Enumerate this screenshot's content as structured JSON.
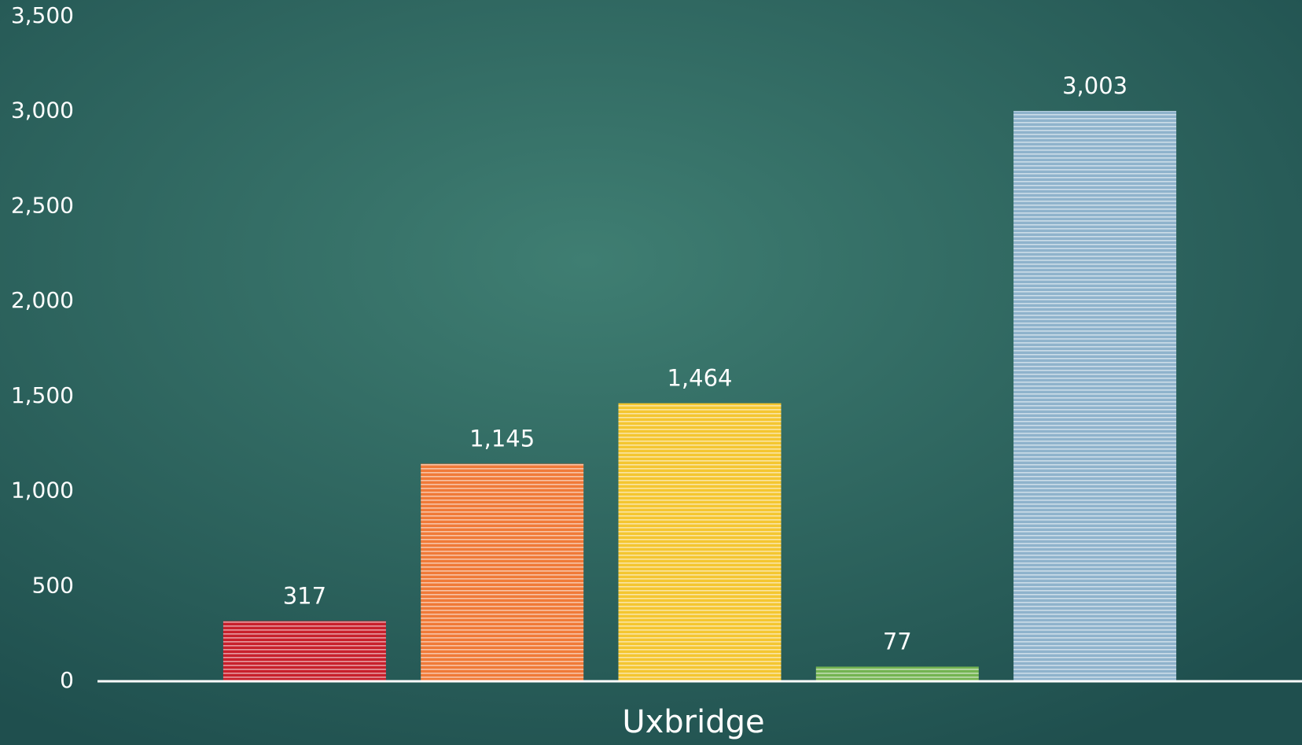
{
  "chart_data": {
    "type": "bar",
    "categories": [
      "Uxbridge"
    ],
    "series": [
      {
        "color": "#c8202c",
        "values": [
          317
        ]
      },
      {
        "color": "#f07a38",
        "values": [
          1145
        ],
        "value_labels": [
          "1,145"
        ]
      },
      {
        "color": "#f4c630",
        "values": [
          1464
        ],
        "value_labels": [
          "1,464"
        ]
      },
      {
        "color": "#74b452",
        "values": [
          77
        ]
      },
      {
        "color": "#8fb3cc",
        "values": [
          3003
        ],
        "value_labels": [
          "3,003"
        ]
      }
    ],
    "ylim": [
      0,
      3500
    ],
    "yticks": [
      0,
      500,
      {
        "value": 1000,
        "label": "1,000"
      },
      {
        "value": 1500,
        "label": "1,500"
      },
      {
        "value": 2000,
        "label": "2,000"
      },
      {
        "value": 2500,
        "label": "2,500"
      },
      {
        "value": 3000,
        "label": "3,000"
      },
      {
        "value": 3500,
        "label": "3,500"
      }
    ],
    "grid": false
  }
}
